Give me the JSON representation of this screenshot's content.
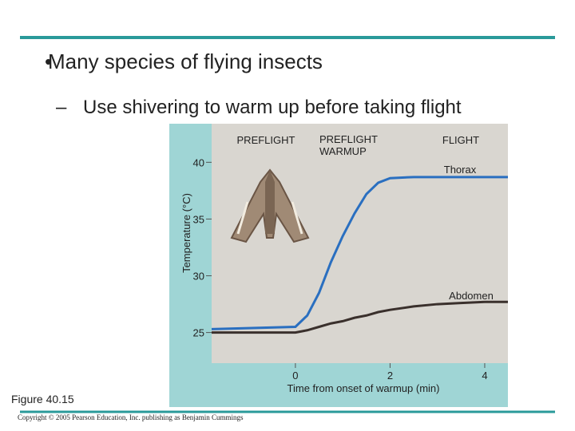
{
  "slide": {
    "title": "Many species of flying insects",
    "subtitle": "Use shivering to warm up before taking flight"
  },
  "figure_label": "Figure 40.15",
  "copyright": "Copyright © 2005 Pearson Education, Inc. publishing as Benjamin Cummings",
  "chart_data": {
    "type": "line",
    "phases": [
      "PREFLIGHT",
      "PREFLIGHT WARMUP",
      "FLIGHT"
    ],
    "x_label": "Time from onset of warmup (min)",
    "y_label": "Temperature (°C)",
    "x": [
      -1.77,
      0,
      0.25,
      0.5,
      0.75,
      1,
      1.25,
      1.5,
      1.75,
      2,
      2.5,
      3,
      3.5,
      4,
      4.49
    ],
    "series": [
      {
        "name": "Thorax",
        "color": "#2a6fc0",
        "values": [
          25.3,
          25.5,
          26.5,
          28.5,
          31.2,
          33.5,
          35.5,
          37.2,
          38.2,
          38.6,
          38.7,
          38.7,
          38.7,
          38.7,
          38.7
        ]
      },
      {
        "name": "Abdomen",
        "color": "#3a302c",
        "values": [
          25.0,
          25.0,
          25.2,
          25.5,
          25.8,
          26.0,
          26.3,
          26.5,
          26.8,
          27.0,
          27.3,
          27.5,
          27.6,
          27.7,
          27.7
        ]
      }
    ],
    "xlim": [
      -1.77,
      4.49
    ],
    "ylim": [
      22.3,
      43.4
    ],
    "xticks": [
      0,
      2,
      4
    ],
    "yticks": [
      25,
      30,
      35,
      40
    ]
  }
}
